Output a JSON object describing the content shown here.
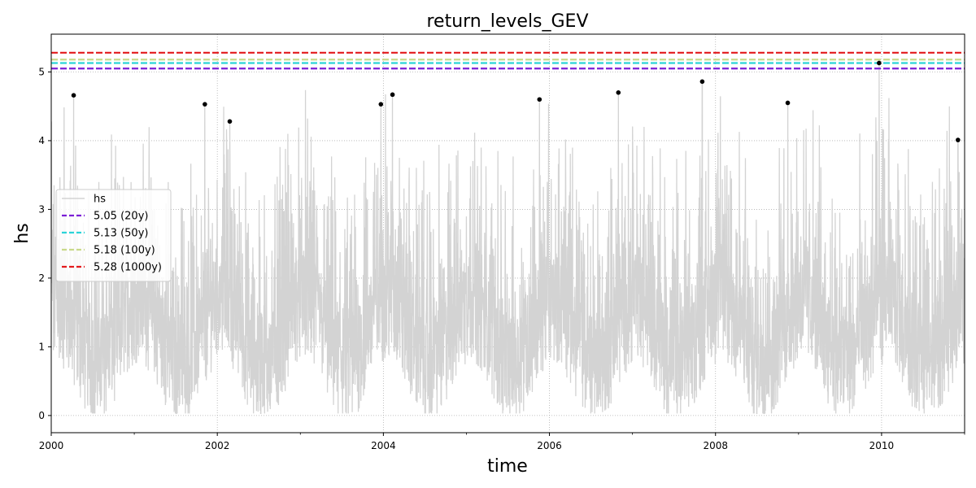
{
  "chart_data": {
    "type": "line",
    "title": "return_levels_GEV",
    "xlabel": "time",
    "ylabel": "hs",
    "xlim": [
      2000.0,
      2011.0
    ],
    "ylim": [
      -0.25,
      5.55
    ],
    "x_ticks": [
      2000,
      2002,
      2004,
      2006,
      2008,
      2010
    ],
    "x_tick_labels": [
      "2000",
      "2002",
      "2004",
      "2006",
      "2008",
      "2010"
    ],
    "x_minor_ticks": [
      2001,
      2003,
      2005,
      2007,
      2009,
      2011
    ],
    "y_ticks": [
      0,
      1,
      2,
      3,
      4,
      5
    ],
    "y_tick_labels": [
      "0",
      "1",
      "2",
      "3",
      "4",
      "5"
    ],
    "grid": true,
    "legend_position": "center-left",
    "series": [
      {
        "name": "hs",
        "kind": "timeseries",
        "color": "#d3d3d3",
        "note_values": "dense wave-height series between ~0.1 and ~5.1"
      }
    ],
    "return_levels": [
      {
        "label": "5.05 (20y)",
        "value": 5.05,
        "color": "#7b1fd6"
      },
      {
        "label": "5.13 (50y)",
        "value": 5.13,
        "color": "#2bd3d8"
      },
      {
        "label": "5.18 (100y)",
        "value": 5.18,
        "color": "#c9d98a"
      },
      {
        "label": "5.28 (1000y)",
        "value": 5.28,
        "color": "#e31a1c"
      }
    ],
    "annual_maxima": [
      {
        "x": 2000.27,
        "y": 4.66
      },
      {
        "x": 2001.85,
        "y": 4.53
      },
      {
        "x": 2002.15,
        "y": 4.28
      },
      {
        "x": 2003.97,
        "y": 4.53
      },
      {
        "x": 2004.11,
        "y": 4.67
      },
      {
        "x": 2005.88,
        "y": 4.6
      },
      {
        "x": 2006.83,
        "y": 4.7
      },
      {
        "x": 2007.84,
        "y": 4.86
      },
      {
        "x": 2008.87,
        "y": 4.55
      },
      {
        "x": 2009.97,
        "y": 5.13
      },
      {
        "x": 2010.92,
        "y": 4.01
      }
    ]
  }
}
